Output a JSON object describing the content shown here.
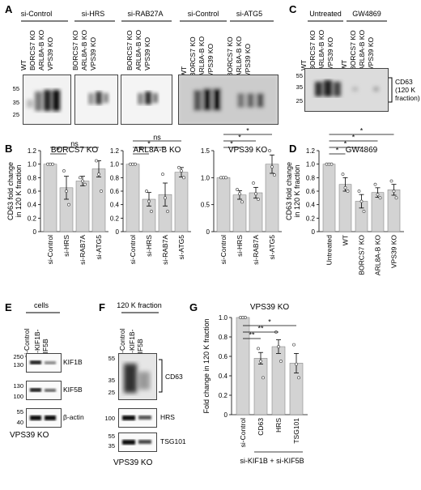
{
  "panels": {
    "A": {
      "label": "A",
      "groups": [
        "si-Control",
        "si-HRS",
        "si-RAB27A",
        "si-Control",
        "si-ATG5"
      ],
      "lanes_full": [
        "WT",
        "BORCS7 KO",
        "ARL8A-B KO",
        "VPS39 KO"
      ],
      "lanes_short": [
        "BORCS7 KO",
        "ARL8A-B KO",
        "VPS39 KO"
      ],
      "mw": [
        "55",
        "35",
        "25"
      ]
    },
    "C": {
      "label": "C",
      "groups": [
        "Untreated",
        "GW4869"
      ],
      "lanes": [
        "WT",
        "BORCS7 KO",
        "ARL8A-B KO",
        "VPS39 KO",
        "WT",
        "BORCS7 KO",
        "ARL8A-B KO",
        "VPS39 KO"
      ],
      "mw": [
        "55",
        "35",
        "25"
      ],
      "side_label": [
        "CD63",
        "(120 K",
        "fraction)"
      ]
    },
    "E": {
      "label": "E",
      "group": "cells",
      "lanes": [
        "si-Control",
        "si-KIF1B-\nKIF5B"
      ],
      "lane1": "si-Control",
      "lane2a": "si-KIF1B-",
      "lane2b": "KIF5B",
      "blots": [
        {
          "name": "KIF1B",
          "mw": [
            "250",
            "130"
          ]
        },
        {
          "name": "KIF5B",
          "mw": [
            "130",
            "100"
          ]
        },
        {
          "name": "β-actin",
          "mw": [
            "55",
            "40"
          ]
        }
      ],
      "caption": "VPS39 KO"
    },
    "F": {
      "label": "F",
      "group": "120 K fraction",
      "lane1": "si-Control",
      "lane2a": "si-KIF1B-",
      "lane2b": "KIF5B",
      "blots": [
        {
          "name": "CD63",
          "mw": [
            "55",
            "35",
            "25"
          ]
        },
        {
          "name": "HRS",
          "mw": [
            "100"
          ]
        },
        {
          "name": "TSG101",
          "mw": [
            "55",
            "35"
          ]
        }
      ],
      "caption": "VPS39 KO"
    }
  },
  "chart_data": [
    {
      "id": "B1",
      "panel": "B",
      "type": "bar",
      "title": "BORCS7 KO",
      "ylabel": "CD63 fold change in 120 K fraction",
      "categories": [
        "si-Control",
        "si-HRS",
        "si-RAB7A",
        "si-ATG5"
      ],
      "values": [
        1.0,
        0.65,
        0.75,
        0.93
      ],
      "errors": [
        0,
        0.17,
        0.07,
        0.12
      ],
      "points": [
        [
          1,
          1,
          1
        ],
        [
          0.9,
          0.6,
          0.4
        ],
        [
          0.8,
          0.75,
          0.7
        ],
        [
          1.05,
          0.85,
          0.6
        ]
      ],
      "ylim": [
        0,
        1.2
      ],
      "yticks": [
        "0",
        "0.2",
        "0.4",
        "0.6",
        "0.8",
        "1.0",
        "1.2"
      ],
      "sig": [
        {
          "from": 0,
          "to": 1,
          "text": "*"
        },
        {
          "from": 0,
          "to": 3,
          "text": "ns"
        }
      ]
    },
    {
      "id": "B2",
      "panel": "B",
      "type": "bar",
      "title": "ARL8A-B KO",
      "ylabel": "",
      "categories": [
        "si-Control",
        "si-HRS",
        "si-RAB7A",
        "si-ATG5"
      ],
      "values": [
        1.0,
        0.48,
        0.55,
        0.88
      ],
      "errors": [
        0,
        0.1,
        0.17,
        0.07
      ],
      "points": [
        [
          1,
          1,
          1
        ],
        [
          0.6,
          0.45,
          0.3
        ],
        [
          0.85,
          0.5,
          0.3
        ],
        [
          0.95,
          0.9,
          0.8
        ]
      ],
      "ylim": [
        0,
        1.2
      ],
      "yticks": [
        "0",
        "0.2",
        "0.4",
        "0.6",
        "0.8",
        "1.0",
        "1.2"
      ],
      "sig": [
        {
          "from": 0,
          "to": 1,
          "text": "*"
        },
        {
          "from": 0,
          "to": 2,
          "text": "*"
        },
        {
          "from": 0,
          "to": 3,
          "text": "ns"
        }
      ]
    },
    {
      "id": "B3",
      "panel": "B",
      "type": "bar",
      "title": "VPS39 KO",
      "ylabel": "",
      "categories": [
        "si-Control",
        "si-HRS",
        "si-RAB7A",
        "si-ATG5"
      ],
      "values": [
        1.0,
        0.68,
        0.72,
        1.25
      ],
      "errors": [
        0,
        0.08,
        0.1,
        0.17
      ],
      "points": [
        [
          1,
          1,
          1
        ],
        [
          0.78,
          0.7,
          0.55
        ],
        [
          0.9,
          0.7,
          0.6
        ],
        [
          1.5,
          1.2,
          1.05
        ]
      ],
      "ylim": [
        0,
        1.5
      ],
      "yticks": [
        "0",
        "0.5",
        "1.0",
        "1.5"
      ],
      "sig": [
        {
          "from": 0,
          "to": 1,
          "text": "*"
        },
        {
          "from": 0,
          "to": 2,
          "text": "*"
        },
        {
          "from": 0,
          "to": 3,
          "text": "*"
        }
      ]
    },
    {
      "id": "D",
      "panel": "D",
      "type": "bar",
      "title": "GW4869",
      "ylabel": "CD63 fold change in 120 K fraction",
      "categories": [
        "Untreated",
        "WT",
        "BORCS7 KO",
        "ARL8A-B KO",
        "VPS39 KO"
      ],
      "values": [
        1.0,
        0.7,
        0.45,
        0.58,
        0.62
      ],
      "errors": [
        0,
        0.1,
        0.1,
        0.07,
        0.08
      ],
      "points": [
        [
          1,
          1,
          1
        ],
        [
          0.85,
          0.65,
          0.6
        ],
        [
          0.6,
          0.45,
          0.3
        ],
        [
          0.7,
          0.55,
          0.5
        ],
        [
          0.75,
          0.6,
          0.5
        ]
      ],
      "ylim": [
        0,
        1.2
      ],
      "yticks": [
        "0",
        "0.2",
        "0.4",
        "0.6",
        "0.8",
        "1.0",
        "1.2"
      ],
      "sig": [
        {
          "from": 0,
          "to": 1,
          "text": "*"
        },
        {
          "from": 0,
          "to": 2,
          "text": "*"
        },
        {
          "from": 0,
          "to": 3,
          "text": "*"
        },
        {
          "from": 0,
          "to": 4,
          "text": "*"
        }
      ]
    },
    {
      "id": "G",
      "panel": "G",
      "type": "bar",
      "title": "VPS39 KO",
      "ylabel": "Fold change in 120 K fraction",
      "categories": [
        "si-Control",
        "CD63",
        "HRS",
        "TSG101"
      ],
      "values": [
        1.0,
        0.58,
        0.7,
        0.53
      ],
      "errors": [
        0,
        0.06,
        0.07,
        0.1
      ],
      "points": [
        [
          1,
          1,
          1
        ],
        [
          0.68,
          0.55,
          0.38
        ],
        [
          0.85,
          0.7,
          0.55
        ],
        [
          0.72,
          0.52,
          0.38
        ]
      ],
      "ylim": [
        0,
        1.0
      ],
      "yticks": [
        "0",
        "0.2",
        "0.4",
        "0.6",
        "0.8",
        "1.0"
      ],
      "sig": [
        {
          "from": 0,
          "to": 1,
          "text": "**"
        },
        {
          "from": 0,
          "to": 2,
          "text": "**"
        },
        {
          "from": 0,
          "to": 3,
          "text": "*"
        }
      ],
      "footer": "si-KIF1B + si-KIF5B"
    }
  ]
}
